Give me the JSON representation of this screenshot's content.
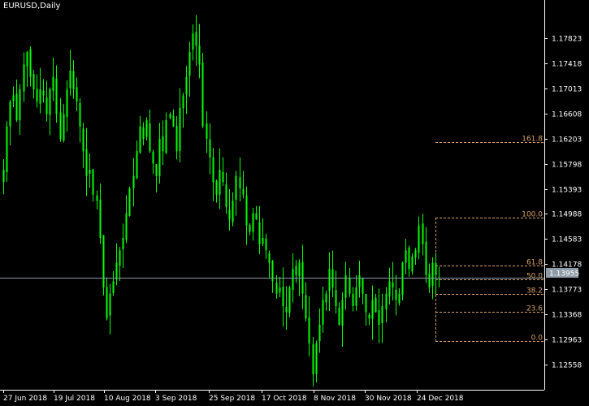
{
  "header": {
    "title": "EURUSD,Daily"
  },
  "current_price_label": "1.13955",
  "colors": {
    "candle": "#00ff00",
    "fib": "#d9a066",
    "axis": "#ffffff",
    "hline": "#8d9ba8",
    "background": "#000000"
  },
  "chart_data": {
    "type": "candlestick",
    "title": "EURUSD,Daily",
    "y_axis": {
      "min": 1.1215,
      "max": 1.1844,
      "ticks": [
        "1.17823",
        "1.17418",
        "1.17013",
        "1.16608",
        "1.16203",
        "1.15798",
        "1.15393",
        "1.14988",
        "1.14583",
        "1.14178",
        "1.13773",
        "1.13368",
        "1.12963",
        "1.12558"
      ]
    },
    "x_axis": {
      "ticks": [
        "27 Jun 2018",
        "19 Jul 2018",
        "10 Aug 2018",
        "3 Sep 2018",
        "25 Sep 2018",
        "17 Oct 2018",
        "8 Nov 2018",
        "30 Nov 2018",
        "24 Dec 2018"
      ]
    },
    "current_price": 1.13955,
    "fibonacci": {
      "levels": [
        {
          "label": "161.8",
          "price": 1.1615
        },
        {
          "label": "100.0",
          "price": 1.1493
        },
        {
          "label": "61.8",
          "price": 1.1416
        },
        {
          "label": "50.0",
          "price": 1.1393
        },
        {
          "label": "38.2",
          "price": 1.137
        },
        {
          "label": "23.6",
          "price": 1.1341
        },
        {
          "label": "0.0",
          "price": 1.1294
        }
      ]
    },
    "closes": [
      1.157,
      1.164,
      1.168,
      1.169,
      1.165,
      1.17,
      1.174,
      1.176,
      1.172,
      1.17,
      1.168,
      1.17,
      1.169,
      1.166,
      1.17,
      1.172,
      1.166,
      1.162,
      1.166,
      1.17,
      1.173,
      1.17,
      1.168,
      1.164,
      1.16,
      1.156,
      1.157,
      1.153,
      1.152,
      1.146,
      1.138,
      1.133,
      1.137,
      1.139,
      1.142,
      1.144,
      1.146,
      1.15,
      1.154,
      1.156,
      1.16,
      1.164,
      1.162,
      1.165,
      1.16,
      1.158,
      1.156,
      1.162,
      1.16,
      1.165,
      1.166,
      1.164,
      1.16,
      1.167,
      1.169,
      1.172,
      1.176,
      1.179,
      1.177,
      1.174,
      1.164,
      1.162,
      1.159,
      1.155,
      1.153,
      1.157,
      1.155,
      1.151,
      1.149,
      1.152,
      1.156,
      1.154,
      1.153,
      1.148,
      1.147,
      1.15,
      1.149,
      1.145,
      1.146,
      1.144,
      1.142,
      1.139,
      1.137,
      1.138,
      1.135,
      1.134,
      1.138,
      1.141,
      1.14,
      1.142,
      1.137,
      1.133,
      1.129,
      1.124,
      1.129,
      1.132,
      1.136,
      1.137,
      1.141,
      1.138,
      1.135,
      1.132,
      1.136,
      1.14,
      1.137,
      1.135,
      1.138,
      1.14,
      1.137,
      1.134,
      1.133,
      1.136,
      1.134,
      1.132,
      1.135,
      1.137,
      1.139,
      1.138,
      1.136,
      1.137,
      1.142,
      1.144,
      1.141,
      1.143,
      1.144,
      1.148,
      1.145,
      1.14,
      1.138,
      1.142,
      1.14,
      1.1395
    ]
  }
}
